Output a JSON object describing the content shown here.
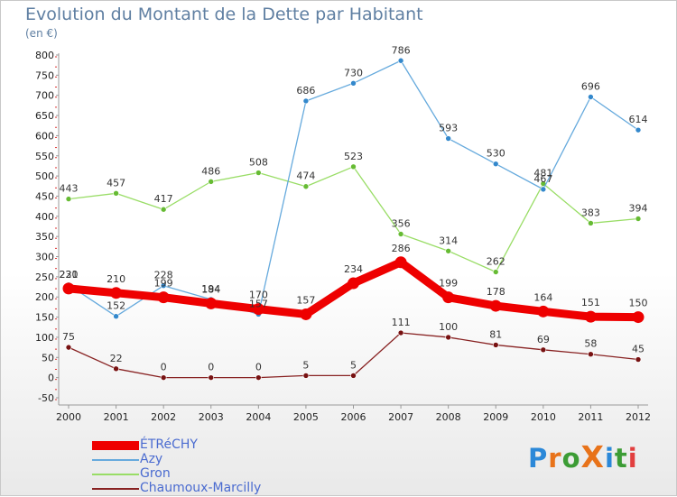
{
  "title": "Evolution du Montant de la Dette par Habitant",
  "subtitle": "(en €)",
  "logo": {
    "text": "ProXiti",
    "colors": [
      "#2b88d8",
      "#e8731a",
      "#3c9c35",
      "#e8731a",
      "#2b88d8",
      "#3c9c35",
      "#e23f3f"
    ]
  },
  "chart_data": {
    "type": "line",
    "x": [
      "2000",
      "2001",
      "2002",
      "2003",
      "2004",
      "2005",
      "2006",
      "2007",
      "2008",
      "2009",
      "2010",
      "2011",
      "2012"
    ],
    "ylim": [
      -50,
      800
    ],
    "yticks": [
      "-50",
      "0",
      "50",
      "100",
      "150",
      "200",
      "250",
      "300",
      "350",
      "400",
      "450",
      "500",
      "550",
      "600",
      "650",
      "700",
      "750",
      "800"
    ],
    "grid": false,
    "legend_position": "bottom-left",
    "series": [
      {
        "name": "Gron",
        "color": "#99dd66",
        "marker": "#66bb33",
        "values": [
          443,
          457,
          417,
          486,
          508,
          474,
          523,
          356,
          314,
          262,
          481,
          383,
          394
        ],
        "labels": [
          "443",
          "457",
          "417",
          "486",
          "508",
          "474",
          "523",
          "356",
          "314",
          "262",
          "481",
          "383",
          "394"
        ]
      },
      {
        "name": "Azy",
        "color": "#66aadd",
        "marker": "#3388cc",
        "values": [
          230,
          152,
          228,
          194,
          157,
          686,
          730,
          786,
          593,
          530,
          467,
          696,
          614
        ],
        "labels": [
          "230",
          "152",
          "228",
          "194",
          "157",
          "686",
          "730",
          "786",
          "593",
          "530",
          "467",
          "696",
          "614"
        ]
      },
      {
        "name": "Chaumoux-Marcilly",
        "color": "#882222",
        "marker": "#771111",
        "values": [
          75,
          22,
          0,
          0,
          0,
          5,
          5,
          111,
          100,
          81,
          69,
          58,
          45
        ],
        "labels": [
          "75",
          "22",
          "0",
          "0",
          "0",
          "5",
          "5",
          "111",
          "100",
          "81",
          "69",
          "58",
          "45"
        ]
      },
      {
        "name": "ÉTRéCHY",
        "color": "#ee0000",
        "marker": "#ee0000",
        "values": [
          221,
          210,
          199,
          184,
          170,
          157,
          234,
          286,
          199,
          178,
          164,
          151,
          150
        ],
        "labels": [
          "221",
          "210",
          "199",
          "184",
          "170",
          "157",
          "234",
          "286",
          "199",
          "178",
          "164",
          "151",
          "150"
        ]
      }
    ]
  },
  "legend": [
    {
      "label": "ÉTRéCHY",
      "color": "#ee0000"
    },
    {
      "label": "Azy",
      "color": "#66aadd"
    },
    {
      "label": "Gron",
      "color": "#99dd66"
    },
    {
      "label": "Chaumoux-Marcilly",
      "color": "#882222"
    }
  ]
}
